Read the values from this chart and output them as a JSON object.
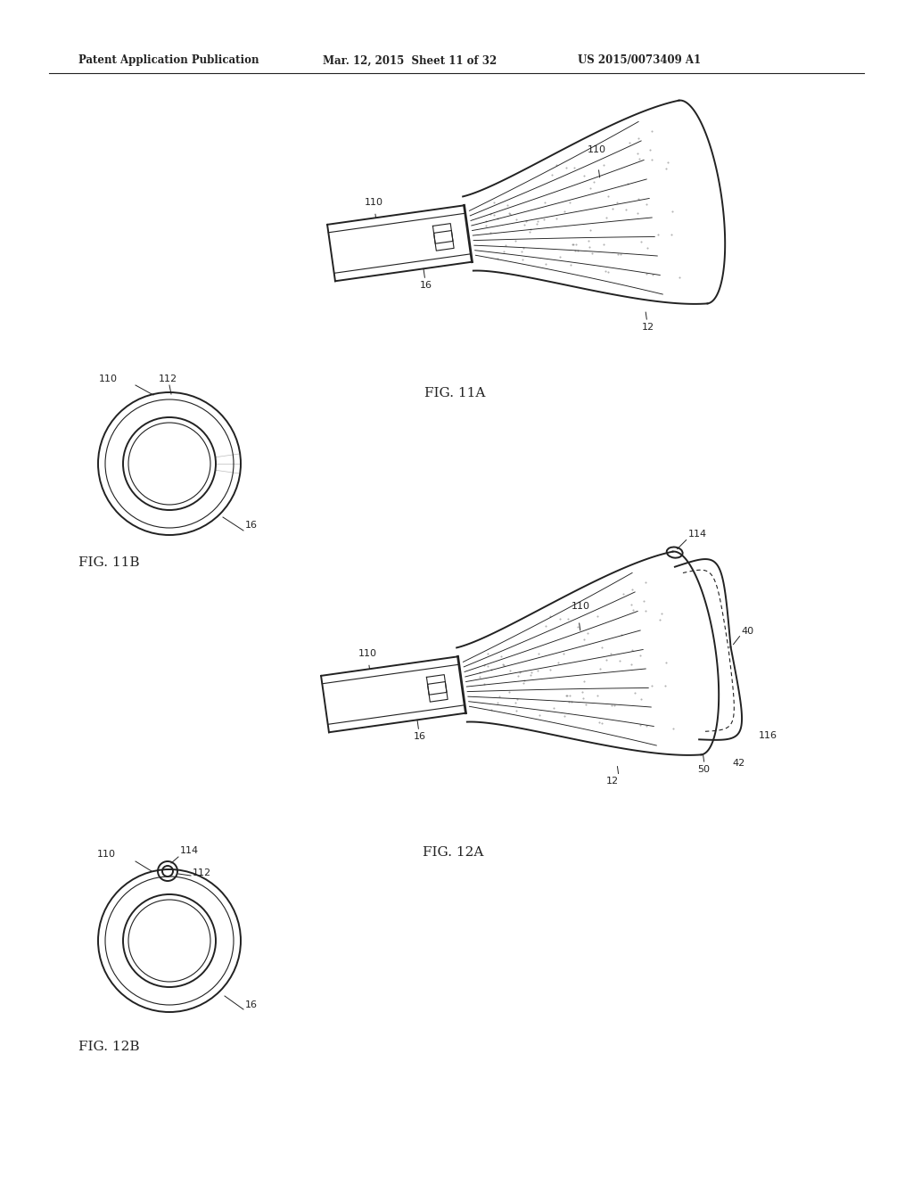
{
  "bg_color": "#ffffff",
  "header_left": "Patent Application Publication",
  "header_mid": "Mar. 12, 2015  Sheet 11 of 32",
  "header_right": "US 2015/0073409 A1",
  "fig11a_label": "FIG. 11A",
  "fig11b_label": "FIG. 11B",
  "fig12a_label": "FIG. 12A",
  "fig12b_label": "FIG. 12B"
}
